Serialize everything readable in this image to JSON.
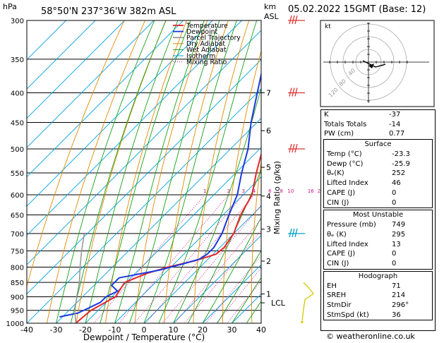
{
  "header": {
    "pressure_unit": "hPa",
    "location": "58°50'N  237°36'W  382m  ASL",
    "km_label": "km",
    "asl_label": "ASL",
    "datetime": "05.02.2022  15GMT  (Base: 12)"
  },
  "hodograph": {
    "unit_label": "kt",
    "ring_labels": [
      "120",
      "80",
      "40"
    ]
  },
  "indices": {
    "k_label": "K",
    "k_value": "-37",
    "tt_label": "Totals Totals",
    "tt_value": "-14",
    "pw_label": "PW (cm)",
    "pw_value": "0.77"
  },
  "surface": {
    "title": "Surface",
    "temp_label": "Temp (°C)",
    "temp_value": "-23.3",
    "dewp_label": "Dewp (°C)",
    "dewp_value": "-25.9",
    "theta_label": "θₑ(K)",
    "theta_value": "252",
    "li_label": "Lifted Index",
    "li_value": "46",
    "cape_label": "CAPE (J)",
    "cape_value": "0",
    "cin_label": "CIN (J)",
    "cin_value": "0"
  },
  "most_unstable": {
    "title": "Most Unstable",
    "pressure_label": "Pressure (mb)",
    "pressure_value": "749",
    "theta_label": "θₑ (K)",
    "theta_value": "295",
    "li_label": "Lifted Index",
    "li_value": "13",
    "cape_label": "CAPE (J)",
    "cape_value": "0",
    "cin_label": "CIN (J)",
    "cin_value": "0"
  },
  "hodo_table": {
    "title": "Hodograph",
    "eh_label": "EH",
    "eh_value": "71",
    "sreh_label": "SREH",
    "sreh_value": "214",
    "stmdir_label": "StmDir",
    "stmdir_value": "296°",
    "stmspd_label": "StmSpd (kt)",
    "stmspd_value": "36"
  },
  "credit": "© weatheronline.co.uk",
  "colors": {
    "temperature": "#e8242a",
    "dewpoint": "#1a3adf",
    "parcel": "#999999",
    "dry_adiabat": "#e08a00",
    "wet_adiabat": "#18a018",
    "isotherm": "#00a0e0",
    "mixing_ratio": "#d0108a",
    "wind_red": "#e03030",
    "wind_cyan": "#00a0c8",
    "wind_yellow": "#d8c800"
  },
  "chart_data": {
    "type": "line",
    "title": "Skew-T log-P sounding",
    "xlabel": "Dewpoint / Temperature (°C)",
    "ylabel": "hPa",
    "right_ylabel": "Mixing Ratio (g/kg)",
    "x_range": [
      -40,
      40
    ],
    "x_ticks": [
      -40,
      -30,
      -20,
      -10,
      0,
      10,
      20,
      30,
      40
    ],
    "pressure_range": [
      300,
      1000
    ],
    "pressure_ticks": [
      300,
      350,
      400,
      450,
      500,
      550,
      600,
      650,
      700,
      750,
      800,
      850,
      900,
      950,
      1000
    ],
    "km_ticks": [
      {
        "label": "7",
        "p": 400
      },
      {
        "label": "6",
        "p": 465
      },
      {
        "label": "5",
        "p": 538
      },
      {
        "label": "4",
        "p": 603
      },
      {
        "label": "3",
        "p": 688
      },
      {
        "label": "2",
        "p": 781
      },
      {
        "label": "1",
        "p": 890
      },
      {
        "label": "LCL",
        "p": 922
      }
    ],
    "mixing_ratio_labels": [
      "1",
      "2",
      "3",
      "4",
      "6",
      "8",
      "10",
      "16",
      "20",
      "25"
    ],
    "mixing_ratio_values": [
      1,
      2,
      3,
      4,
      6,
      8,
      10,
      16,
      20,
      25
    ],
    "legend": [
      "Temperature",
      "Dewpoint",
      "Parcel Trajectory",
      "Dry Adiabat",
      "Wet Adiabat",
      "Isotherm",
      "Mixing Ratio"
    ],
    "legend_position": "top-left",
    "series": [
      {
        "name": "Temperature",
        "points": [
          [
            1000,
            -23.3
          ],
          [
            950,
            -22.5
          ],
          [
            900,
            -18.8
          ],
          [
            850,
            -20.5
          ],
          [
            820,
            -16
          ],
          [
            800,
            -11
          ],
          [
            780,
            -4
          ],
          [
            760,
            1
          ],
          [
            740,
            1.5
          ],
          [
            700,
            0
          ],
          [
            650,
            -4
          ],
          [
            600,
            -7
          ],
          [
            550,
            -13
          ],
          [
            500,
            -19
          ],
          [
            450,
            -26
          ],
          [
            400,
            -34
          ],
          [
            350,
            -42
          ],
          [
            300,
            -51
          ]
        ]
      },
      {
        "name": "Dewpoint",
        "points": [
          [
            975,
            -31
          ],
          [
            960,
            -26
          ],
          [
            940,
            -24
          ],
          [
            920,
            -22
          ],
          [
            900,
            -22
          ],
          [
            880,
            -20
          ],
          [
            860,
            -24
          ],
          [
            835,
            -24
          ],
          [
            810,
            -13
          ],
          [
            790,
            -7
          ],
          [
            775,
            -3
          ],
          [
            760,
            -2
          ],
          [
            740,
            -2
          ],
          [
            700,
            -4
          ],
          [
            650,
            -8
          ],
          [
            600,
            -12
          ],
          [
            550,
            -18
          ],
          [
            500,
            -24
          ],
          [
            450,
            -32
          ],
          [
            400,
            -40
          ],
          [
            350,
            -49
          ],
          [
            300,
            -57
          ]
        ]
      },
      {
        "name": "Parcel Trajectory",
        "points": [
          [
            1000,
            -23.3
          ],
          [
            950,
            -28
          ],
          [
            900,
            -32
          ],
          [
            850,
            -36
          ],
          [
            800,
            -41
          ],
          [
            750,
            -46
          ],
          [
            700,
            -51
          ]
        ]
      }
    ],
    "wind_barbs": [
      {
        "p": 300,
        "color": "red"
      },
      {
        "p": 400,
        "color": "red"
      },
      {
        "p": 500,
        "color": "red"
      },
      {
        "p": 700,
        "color": "cyan"
      },
      {
        "p": 870,
        "color": "yellow"
      }
    ]
  }
}
